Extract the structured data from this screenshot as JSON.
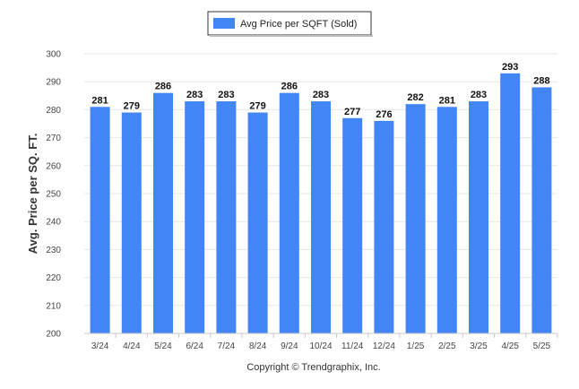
{
  "chart_data": {
    "type": "bar",
    "title": "",
    "xlabel": "",
    "ylabel": "Avg. Price per SQ. FT.",
    "categories": [
      "3/24",
      "4/24",
      "5/24",
      "6/24",
      "7/24",
      "8/24",
      "9/24",
      "10/24",
      "11/24",
      "12/24",
      "1/25",
      "2/25",
      "3/25",
      "4/25",
      "5/25"
    ],
    "series": [
      {
        "name": "Avg Price per SQFT (Sold)",
        "values": [
          281,
          279,
          286,
          283,
          283,
          279,
          286,
          283,
          277,
          276,
          282,
          281,
          283,
          293,
          288
        ],
        "color": "#4285f4"
      }
    ],
    "ylim": [
      200,
      300
    ],
    "yticks": [
      200,
      210,
      220,
      230,
      240,
      250,
      260,
      270,
      280,
      290,
      300
    ],
    "grid": true,
    "legend_position": "top-center",
    "data_labels": true
  },
  "footer": {
    "credit": "Copyright © Trendgraphix, Inc."
  }
}
